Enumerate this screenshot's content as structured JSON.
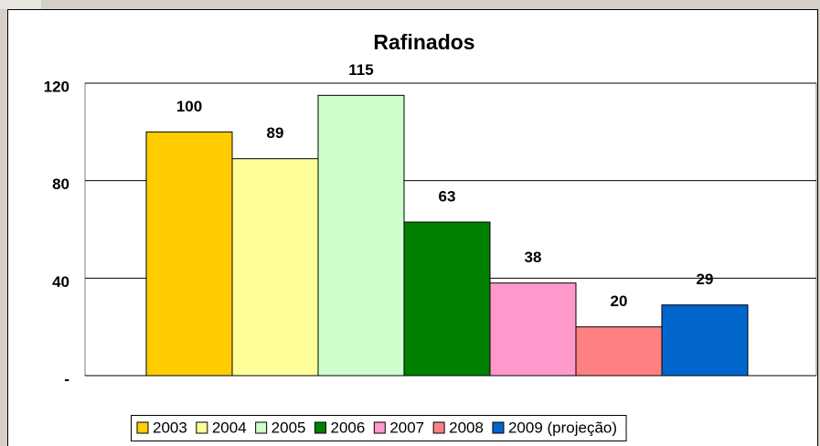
{
  "chart_data": {
    "type": "bar",
    "title": "Rafinados",
    "series": [
      {
        "name": "2003",
        "color": "#FFCC00",
        "values": [
          100
        ]
      },
      {
        "name": "2004",
        "color": "#FFFF99",
        "values": [
          89
        ]
      },
      {
        "name": "2005",
        "color": "#CCFFCC",
        "values": [
          115
        ]
      },
      {
        "name": "2006",
        "color": "#008000",
        "values": [
          63
        ]
      },
      {
        "name": "2007",
        "color": "#FF99CC",
        "values": [
          38
        ]
      },
      {
        "name": "2008",
        "color": "#FF8080",
        "values": [
          20
        ]
      },
      {
        "name": "2009 (projeção)",
        "color": "#0066CC",
        "values": [
          29
        ]
      }
    ],
    "ylim": [
      0,
      120
    ],
    "yticks": [
      {
        "value": 0,
        "label": "-"
      },
      40,
      80,
      120
    ],
    "grid": true,
    "legend": "bottom"
  }
}
